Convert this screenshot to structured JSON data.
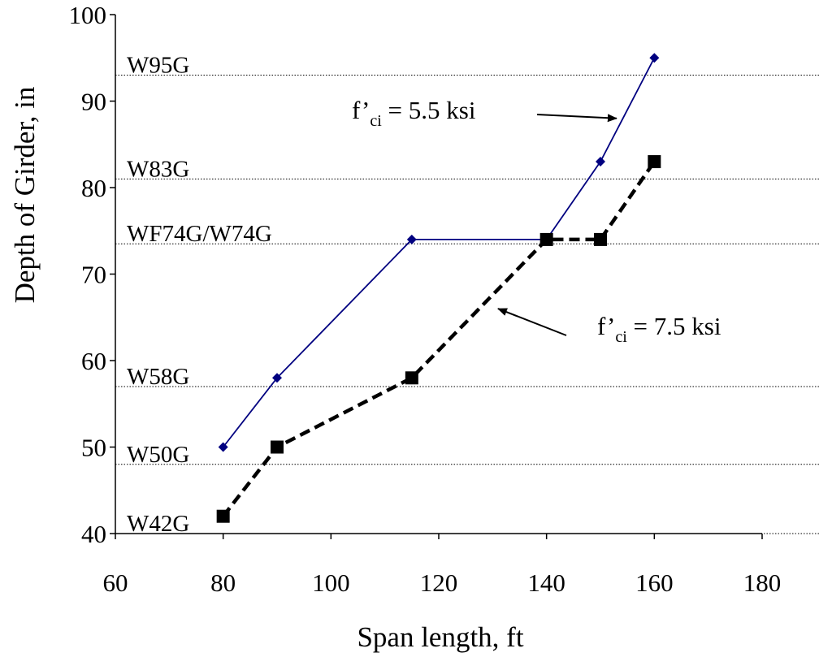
{
  "chart_data": {
    "type": "line",
    "xlabel": "Span length,  ft",
    "ylabel": "Depth of Girder,   in",
    "xlim": [
      60,
      180
    ],
    "ylim": [
      40,
      100
    ],
    "xticks": [
      "60",
      "80",
      "100",
      "120",
      "140",
      "160",
      "180"
    ],
    "yticks": [
      "40",
      "50",
      "60",
      "70",
      "80",
      "90",
      "100"
    ],
    "grid": false,
    "reference_lines": [
      {
        "label": "W95G",
        "y": 93
      },
      {
        "label": "W83G",
        "y": 81
      },
      {
        "label": "WF74G/W74G",
        "y": 73.5
      },
      {
        "label": "W58G",
        "y": 57
      },
      {
        "label": "W50G",
        "y": 48
      },
      {
        "label": "W42G",
        "y": 40
      }
    ],
    "series": [
      {
        "x": [
          80,
          90,
          115,
          140,
          150,
          160
        ],
        "y": [
          50,
          58,
          74,
          74,
          83,
          95
        ],
        "color": "#000080",
        "style": "solid",
        "marker": "diamond"
      },
      {
        "x": [
          80,
          90,
          115,
          140,
          150,
          160
        ],
        "y": [
          42,
          50,
          58,
          74,
          74,
          83
        ],
        "color": "#000000",
        "style": "dashed",
        "marker": "square"
      }
    ],
    "annotations": [
      {
        "text_main": "f’",
        "text_sub": "ci",
        "text_rest": " = 5.5 ksi",
        "points_to": [
          153,
          88
        ]
      },
      {
        "text_main": "f’",
        "text_sub": "ci",
        "text_rest": " = 7.5 ksi",
        "points_to": [
          131,
          66
        ]
      }
    ]
  }
}
